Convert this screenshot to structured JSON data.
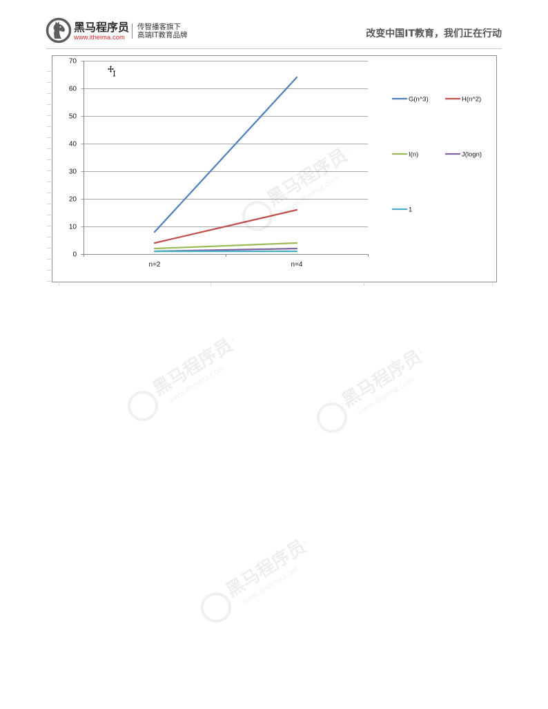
{
  "header": {
    "logo_icon": "horse-head-logo-icon",
    "brand_name": "黑马程序员",
    "brand_url": "www.itheima.com",
    "tagline_1": "传智播客旗下",
    "tagline_2": "高端IT教育品牌",
    "slogan": "改变中国IT教育，我们正在行动"
  },
  "colors": {
    "brand_url": "#d7262d",
    "slogan_text": "#555555",
    "header_rule": "#c8c8c8"
  },
  "chart_area": {
    "cursor_icon": "move-cursor-icon"
  },
  "watermark": {
    "text": "黑马程序员",
    "trademark": "™",
    "url": "www.itheima.com"
  },
  "chart_data": {
    "type": "line",
    "categories": [
      "n=2",
      "n=4"
    ],
    "series": [
      {
        "name": "G(n^3)",
        "values": [
          8,
          64
        ],
        "color": "#4F81BD"
      },
      {
        "name": "H(n^2)",
        "values": [
          4,
          16
        ],
        "color": "#C0504D"
      },
      {
        "name": "I(n)",
        "values": [
          2,
          4
        ],
        "color": "#9BBB59"
      },
      {
        "name": "J(logn)",
        "values": [
          1,
          2
        ],
        "color": "#8064A2"
      },
      {
        "name": "1",
        "values": [
          1,
          1
        ],
        "color": "#4BACC6"
      }
    ],
    "ylim": [
      0,
      70
    ],
    "yticks": [
      0,
      10,
      20,
      30,
      40,
      50,
      60,
      70
    ],
    "grid": true,
    "legend_position": "right"
  }
}
